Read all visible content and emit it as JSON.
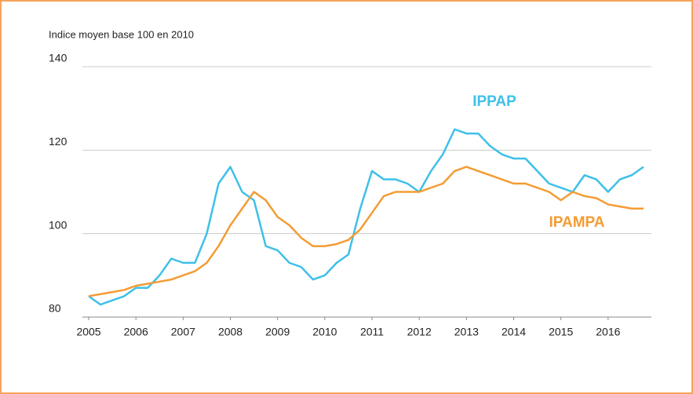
{
  "chart_data": {
    "type": "line",
    "ylabel": "Indice moyen base 100 en 2010",
    "x": [
      2005,
      2005.25,
      2005.5,
      2005.75,
      2006,
      2006.25,
      2006.5,
      2006.75,
      2007,
      2007.25,
      2007.5,
      2007.75,
      2008,
      2008.25,
      2008.5,
      2008.75,
      2009,
      2009.25,
      2009.5,
      2009.75,
      2010,
      2010.25,
      2010.5,
      2010.75,
      2011,
      2011.25,
      2011.5,
      2011.75,
      2012,
      2012.25,
      2012.5,
      2012.75,
      2013,
      2013.25,
      2013.5,
      2013.75,
      2014,
      2014.25,
      2014.5,
      2014.75,
      2015,
      2015.25,
      2015.5,
      2015.75,
      2016,
      2016.25,
      2016.5,
      2016.75
    ],
    "series": [
      {
        "name": "IPPAP",
        "color": "#3ec0e8",
        "values": [
          85,
          83,
          84,
          85,
          87,
          87,
          90,
          94,
          93,
          93,
          100,
          112,
          116,
          110,
          108,
          97,
          96,
          93,
          92,
          89,
          90,
          93,
          95,
          106,
          115,
          113,
          113,
          112,
          110,
          115,
          119,
          125,
          124,
          124,
          121,
          119,
          118,
          118,
          115,
          112,
          111,
          110,
          114,
          113,
          110,
          113,
          114,
          116
        ]
      },
      {
        "name": "IPAMPA",
        "color": "#f39c34",
        "values": [
          85,
          85.5,
          86,
          86.5,
          87.5,
          88,
          88.5,
          89,
          90,
          91,
          93,
          97,
          102,
          106,
          110,
          108,
          104,
          102,
          99,
          97,
          97,
          97.5,
          98.5,
          101,
          105,
          109,
          110,
          110,
          110,
          111,
          112,
          115,
          116,
          115,
          114,
          113,
          112,
          112,
          111,
          110,
          108,
          110,
          109,
          108.5,
          107,
          106.5,
          106,
          106
        ]
      }
    ],
    "xlim": [
      2004.9,
      2016.9
    ],
    "xticks": [
      2005,
      2006,
      2007,
      2008,
      2009,
      2010,
      2011,
      2012,
      2013,
      2014,
      2015,
      2016
    ],
    "ylim": [
      80,
      140
    ],
    "yticks": [
      80,
      100,
      120,
      140
    ],
    "grid": true
  }
}
